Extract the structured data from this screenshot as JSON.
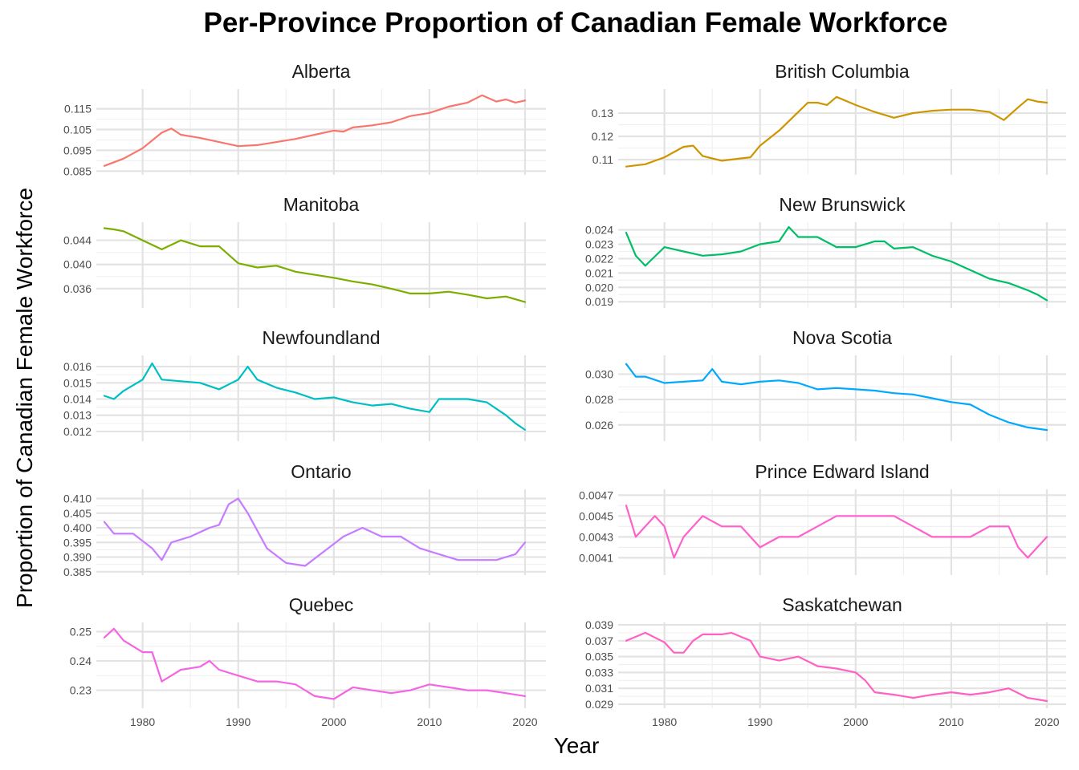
{
  "chart_data": {
    "type": "line",
    "title": "Per-Province Proportion of Canadian Female Workforce",
    "xlabel": "Year",
    "ylabel": "Proportion of Canadian Female Workforce",
    "x_ticks": [
      1980,
      1990,
      2000,
      2010,
      2020
    ],
    "xlim": [
      1976,
      2020
    ],
    "grid": true,
    "legend": "none",
    "panels": [
      {
        "name": "Alberta",
        "color": "#F8766D",
        "ylim": [
          0.0855,
          0.1222
        ],
        "y_ticks": [
          0.085,
          0.095,
          0.105,
          0.115
        ],
        "y_tick_labels": [
          "0.085",
          "0.095",
          "0.105",
          "0.115"
        ],
        "x": [
          1976,
          1978,
          1980,
          1982,
          1983,
          1984,
          1986,
          1988,
          1990,
          1992,
          1994,
          1996,
          1998,
          2000,
          2001,
          2002,
          2004,
          2006,
          2008,
          2010,
          2011,
          2012,
          2014,
          2015.5,
          2017,
          2018,
          2019,
          2020
        ],
        "values": [
          0.0875,
          0.091,
          0.096,
          0.1035,
          0.1055,
          0.1025,
          0.101,
          0.099,
          0.097,
          0.0975,
          0.099,
          0.1005,
          0.1025,
          0.1045,
          0.104,
          0.106,
          0.107,
          0.1085,
          0.1115,
          0.113,
          0.1145,
          0.116,
          0.118,
          0.1215,
          0.1185,
          0.1195,
          0.118,
          0.119
        ]
      },
      {
        "name": "British Columbia",
        "color": "#CD9600",
        "ylim": [
          0.1055,
          0.1383
        ],
        "y_ticks": [
          0.11,
          0.12,
          0.13
        ],
        "y_tick_labels": [
          "0.11",
          "0.12",
          "0.13"
        ],
        "x": [
          1976,
          1977,
          1978,
          1980,
          1982,
          1983,
          1984,
          1986,
          1988,
          1989,
          1990,
          1992,
          1994,
          1995,
          1996,
          1997,
          1998,
          2000,
          2002,
          2004,
          2006,
          2008,
          2010,
          2012,
          2014,
          2015.5,
          2017,
          2018,
          2019,
          2020
        ],
        "values": [
          0.107,
          0.1075,
          0.108,
          0.111,
          0.1155,
          0.116,
          0.1115,
          0.1095,
          0.1105,
          0.111,
          0.116,
          0.1225,
          0.1305,
          0.1345,
          0.1345,
          0.1335,
          0.137,
          0.1335,
          0.1305,
          0.128,
          0.13,
          0.131,
          0.1315,
          0.1315,
          0.1305,
          0.127,
          0.1325,
          0.136,
          0.135,
          0.1345
        ]
      },
      {
        "name": "Manitoba",
        "color": "#7CAE00",
        "ylim": [
          0.0336,
          0.0462
        ],
        "y_ticks": [
          0.036,
          0.04,
          0.044
        ],
        "y_tick_labels": [
          "0.036",
          "0.040",
          "0.044"
        ],
        "x": [
          1976,
          1977,
          1978,
          1980,
          1982,
          1984,
          1986,
          1988,
          1990,
          1992,
          1994,
          1996,
          1998,
          2000,
          2002,
          2004,
          2006,
          2008,
          2010,
          2012,
          2014,
          2016,
          2018,
          2020
        ],
        "values": [
          0.046,
          0.0458,
          0.0455,
          0.044,
          0.0425,
          0.044,
          0.043,
          0.043,
          0.0402,
          0.0395,
          0.0398,
          0.0388,
          0.0383,
          0.0378,
          0.0372,
          0.0367,
          0.036,
          0.0352,
          0.0352,
          0.0355,
          0.035,
          0.0344,
          0.0347,
          0.0338
        ]
      },
      {
        "name": "New Brunswick",
        "color": "#00BE67",
        "ylim": [
          0.0189,
          0.0242
        ],
        "y_ticks": [
          0.019,
          0.02,
          0.021,
          0.022,
          0.023,
          0.024
        ],
        "y_tick_labels": [
          "0.019",
          "0.020",
          "0.021",
          "0.022",
          "0.023",
          "0.024"
        ],
        "x": [
          1976,
          1977,
          1978,
          1980,
          1982,
          1984,
          1986,
          1988,
          1990,
          1992,
          1993,
          1994,
          1996,
          1998,
          2000,
          2002,
          2003,
          2004,
          2006,
          2008,
          2010,
          2012,
          2014,
          2016,
          2018,
          2019,
          2020
        ],
        "values": [
          0.0238,
          0.0222,
          0.0215,
          0.0228,
          0.0225,
          0.0222,
          0.0223,
          0.0225,
          0.023,
          0.0232,
          0.0242,
          0.0235,
          0.0235,
          0.0228,
          0.0228,
          0.0232,
          0.0232,
          0.0227,
          0.0228,
          0.0222,
          0.0218,
          0.0212,
          0.0206,
          0.0203,
          0.0198,
          0.0195,
          0.0191
        ]
      },
      {
        "name": "Newfoundland",
        "color": "#00BFC4",
        "ylim": [
          0.0117,
          0.0164
        ],
        "y_ticks": [
          0.012,
          0.013,
          0.014,
          0.015,
          0.016
        ],
        "y_tick_labels": [
          "0.012",
          "0.013",
          "0.014",
          "0.015",
          "0.016"
        ],
        "x": [
          1976,
          1977,
          1978,
          1980,
          1981,
          1982,
          1984,
          1986,
          1988,
          1990,
          1991,
          1992,
          1994,
          1996,
          1998,
          2000,
          2002,
          2004,
          2006,
          2008,
          2010,
          2011,
          2012,
          2014,
          2016,
          2018,
          2019,
          2020
        ],
        "values": [
          0.0142,
          0.014,
          0.0145,
          0.0152,
          0.0162,
          0.0152,
          0.0151,
          0.015,
          0.0146,
          0.0152,
          0.016,
          0.0152,
          0.0147,
          0.0144,
          0.014,
          0.0141,
          0.0138,
          0.0136,
          0.0137,
          0.0134,
          0.0132,
          0.014,
          0.014,
          0.014,
          0.0138,
          0.013,
          0.0125,
          0.0121
        ]
      },
      {
        "name": "Nova Scotia",
        "color": "#00A9FF",
        "ylim": [
          0.0251,
          0.0311
        ],
        "y_ticks": [
          0.026,
          0.028,
          0.03
        ],
        "y_tick_labels": [
          "0.026",
          "0.028",
          "0.030"
        ],
        "x": [
          1976,
          1977,
          1978,
          1980,
          1982,
          1984,
          1985,
          1986,
          1988,
          1990,
          1992,
          1994,
          1996,
          1998,
          2000,
          2002,
          2004,
          2006,
          2008,
          2010,
          2012,
          2014,
          2016,
          2018,
          2020
        ],
        "values": [
          0.0308,
          0.0298,
          0.0298,
          0.0293,
          0.0294,
          0.0295,
          0.0304,
          0.0294,
          0.0292,
          0.0294,
          0.0295,
          0.0293,
          0.0288,
          0.0289,
          0.0288,
          0.0287,
          0.0285,
          0.0284,
          0.0281,
          0.0278,
          0.0276,
          0.0268,
          0.0262,
          0.0258,
          0.0256
        ]
      },
      {
        "name": "Ontario",
        "color": "#C77CFF",
        "ylim": [
          0.3855,
          0.4115
        ],
        "y_ticks": [
          0.385,
          0.39,
          0.395,
          0.4,
          0.405,
          0.41
        ],
        "y_tick_labels": [
          "0.385",
          "0.390",
          "0.395",
          "0.400",
          "0.405",
          "0.410"
        ],
        "x": [
          1976,
          1977,
          1979,
          1981,
          1982,
          1983,
          1985,
          1987,
          1988,
          1989,
          1990,
          1991,
          1993,
          1995,
          1997,
          1999,
          2001,
          2003,
          2005,
          2007,
          2009,
          2011,
          2013,
          2015,
          2017,
          2019,
          2020
        ],
        "values": [
          0.402,
          0.398,
          0.398,
          0.393,
          0.389,
          0.395,
          0.397,
          0.4,
          0.401,
          0.408,
          0.41,
          0.405,
          0.393,
          0.388,
          0.387,
          0.392,
          0.397,
          0.4,
          0.397,
          0.397,
          0.393,
          0.391,
          0.389,
          0.389,
          0.389,
          0.391,
          0.395
        ]
      },
      {
        "name": "Prince Edward Island",
        "color": "#FF61CC",
        "ylim": [
          0.00398,
          0.00471
        ],
        "y_ticks": [
          0.0041,
          0.0043,
          0.0045,
          0.0047
        ],
        "y_tick_labels": [
          "0.0041",
          "0.0043",
          "0.0045",
          "0.0047"
        ],
        "x": [
          1976,
          1977,
          1978,
          1979,
          1980,
          1981,
          1982,
          1984,
          1986,
          1988,
          1990,
          1992,
          1994,
          1996,
          1998,
          2000,
          2002,
          2004,
          2006,
          2008,
          2010,
          2012,
          2014,
          2016,
          2017,
          2018,
          2019,
          2020
        ],
        "values": [
          0.0046,
          0.0043,
          0.0044,
          0.0045,
          0.0044,
          0.0041,
          0.0043,
          0.0045,
          0.0044,
          0.0044,
          0.0042,
          0.0043,
          0.0043,
          0.0044,
          0.0045,
          0.0045,
          0.0045,
          0.0045,
          0.0044,
          0.0043,
          0.0043,
          0.0043,
          0.0044,
          0.0044,
          0.0042,
          0.0041,
          0.0042,
          0.0043
        ]
      },
      {
        "name": "Quebec",
        "color": "#F564E3",
        "ylim": [
          0.2255,
          0.2515
        ],
        "y_ticks": [
          0.23,
          0.24,
          0.25
        ],
        "y_tick_labels": [
          "0.23",
          "0.24",
          "0.25"
        ],
        "x": [
          1976,
          1977,
          1978,
          1980,
          1981,
          1982,
          1983,
          1984,
          1986,
          1987,
          1988,
          1990,
          1992,
          1994,
          1996,
          1998,
          2000,
          2002,
          2004,
          2006,
          2008,
          2010,
          2012,
          2014,
          2016,
          2018,
          2020
        ],
        "values": [
          0.248,
          0.251,
          0.247,
          0.243,
          0.243,
          0.233,
          0.235,
          0.237,
          0.238,
          0.24,
          0.237,
          0.235,
          0.233,
          0.233,
          0.232,
          0.228,
          0.227,
          0.231,
          0.23,
          0.229,
          0.23,
          0.232,
          0.231,
          0.23,
          0.23,
          0.229,
          0.228
        ]
      },
      {
        "name": "Saskatchewan",
        "color": "#FF61C3",
        "ylim": [
          0.0291,
          0.0387
        ],
        "y_ticks": [
          0.029,
          0.031,
          0.033,
          0.035,
          0.037,
          0.039
        ],
        "y_tick_labels": [
          "0.029",
          "0.031",
          "0.033",
          "0.035",
          "0.037",
          "0.039"
        ],
        "x": [
          1976,
          1977,
          1978,
          1980,
          1981,
          1982,
          1983,
          1984,
          1986,
          1987,
          1988,
          1989,
          1990,
          1992,
          1994,
          1996,
          1998,
          2000,
          2001,
          2002,
          2004,
          2006,
          2008,
          2010,
          2012,
          2014,
          2016,
          2018,
          2020
        ],
        "values": [
          0.037,
          0.0375,
          0.038,
          0.0368,
          0.0355,
          0.0355,
          0.037,
          0.0378,
          0.0378,
          0.038,
          0.0375,
          0.037,
          0.035,
          0.0345,
          0.035,
          0.0338,
          0.0335,
          0.033,
          0.032,
          0.0305,
          0.0302,
          0.0298,
          0.0302,
          0.0305,
          0.0302,
          0.0305,
          0.031,
          0.0298,
          0.0294
        ]
      }
    ]
  }
}
